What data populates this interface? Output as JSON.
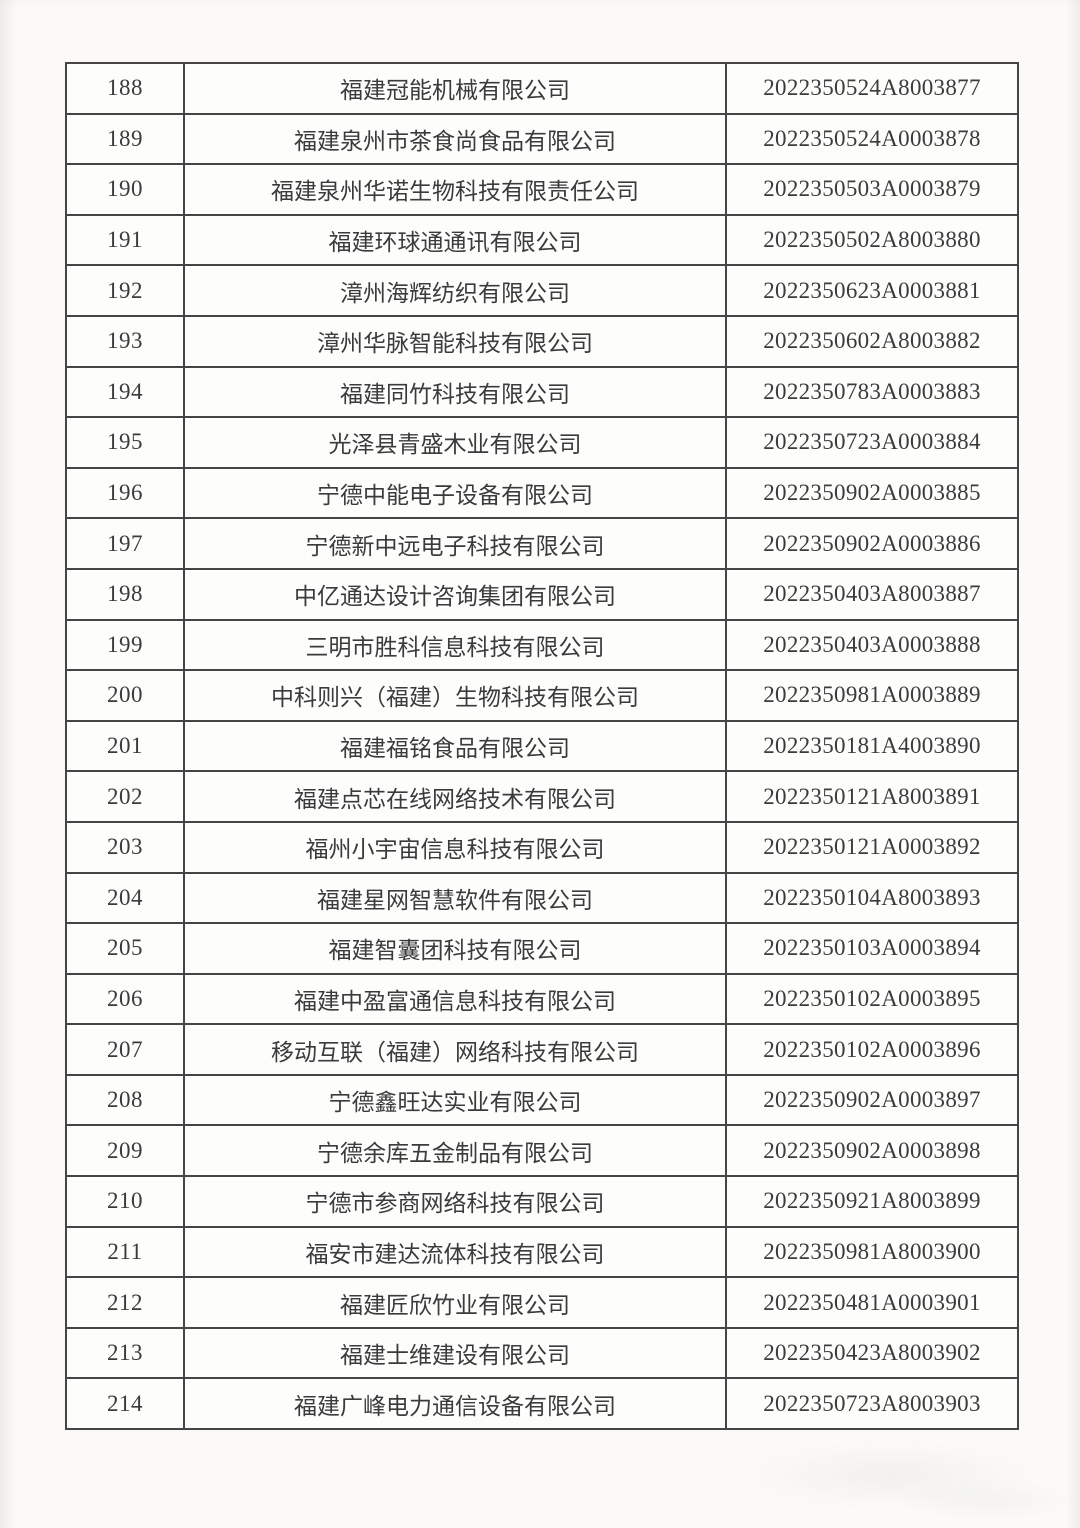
{
  "page": {
    "background_color": "#fbfaf8",
    "table_background_color": "#fdfdfc",
    "border_color": "#454545",
    "text_color": "#3b3b3b"
  },
  "table": {
    "rows": [
      {
        "no": "188",
        "name": "福建冠能机械有限公司",
        "code": "2022350524A8003877"
      },
      {
        "no": "189",
        "name": "福建泉州市茶食尚食品有限公司",
        "code": "2022350524A0003878"
      },
      {
        "no": "190",
        "name": "福建泉州华诺生物科技有限责任公司",
        "code": "2022350503A0003879"
      },
      {
        "no": "191",
        "name": "福建环球通通讯有限公司",
        "code": "2022350502A8003880"
      },
      {
        "no": "192",
        "name": "漳州海辉纺织有限公司",
        "code": "2022350623A0003881"
      },
      {
        "no": "193",
        "name": "漳州华脉智能科技有限公司",
        "code": "2022350602A8003882"
      },
      {
        "no": "194",
        "name": "福建同竹科技有限公司",
        "code": "2022350783A0003883"
      },
      {
        "no": "195",
        "name": "光泽县青盛木业有限公司",
        "code": "2022350723A0003884"
      },
      {
        "no": "196",
        "name": "宁德中能电子设备有限公司",
        "code": "2022350902A0003885"
      },
      {
        "no": "197",
        "name": "宁德新中远电子科技有限公司",
        "code": "2022350902A0003886"
      },
      {
        "no": "198",
        "name": "中亿通达设计咨询集团有限公司",
        "code": "2022350403A8003887"
      },
      {
        "no": "199",
        "name": "三明市胜科信息科技有限公司",
        "code": "2022350403A0003888"
      },
      {
        "no": "200",
        "name": "中科则兴（福建）生物科技有限公司",
        "code": "2022350981A0003889"
      },
      {
        "no": "201",
        "name": "福建福铭食品有限公司",
        "code": "2022350181A4003890"
      },
      {
        "no": "202",
        "name": "福建点芯在线网络技术有限公司",
        "code": "2022350121A8003891"
      },
      {
        "no": "203",
        "name": "福州小宇宙信息科技有限公司",
        "code": "2022350121A0003892"
      },
      {
        "no": "204",
        "name": "福建星网智慧软件有限公司",
        "code": "2022350104A8003893"
      },
      {
        "no": "205",
        "name": "福建智囊团科技有限公司",
        "code": "2022350103A0003894"
      },
      {
        "no": "206",
        "name": "福建中盈富通信息科技有限公司",
        "code": "2022350102A0003895"
      },
      {
        "no": "207",
        "name": "移动互联（福建）网络科技有限公司",
        "code": "2022350102A0003896"
      },
      {
        "no": "208",
        "name": "宁德鑫旺达实业有限公司",
        "code": "2022350902A0003897"
      },
      {
        "no": "209",
        "name": "宁德余库五金制品有限公司",
        "code": "2022350902A0003898"
      },
      {
        "no": "210",
        "name": "宁德市参商网络科技有限公司",
        "code": "2022350921A8003899"
      },
      {
        "no": "211",
        "name": "福安市建达流体科技有限公司",
        "code": "2022350981A8003900"
      },
      {
        "no": "212",
        "name": "福建匠欣竹业有限公司",
        "code": "2022350481A0003901"
      },
      {
        "no": "213",
        "name": "福建士维建设有限公司",
        "code": "2022350423A8003902"
      },
      {
        "no": "214",
        "name": "福建广峰电力通信设备有限公司",
        "code": "2022350723A8003903"
      }
    ]
  }
}
